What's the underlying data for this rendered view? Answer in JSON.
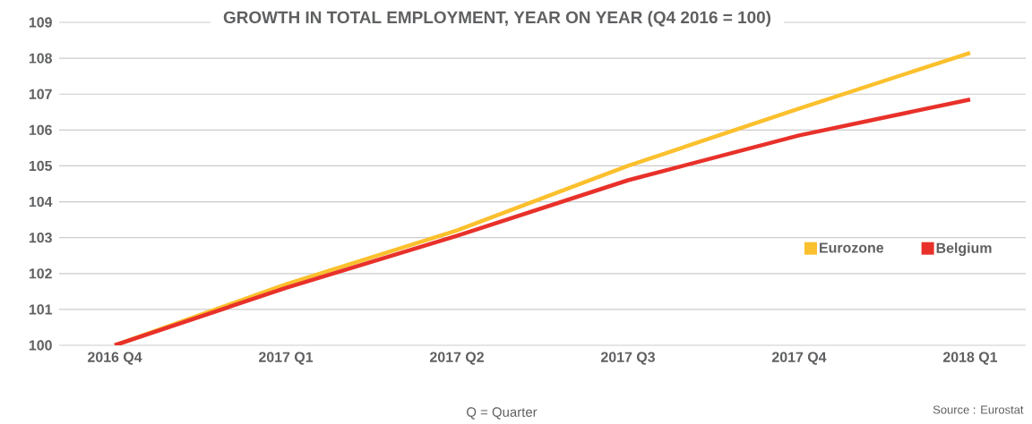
{
  "chart_data": {
    "type": "line",
    "title": "GROWTH IN TOTAL EMPLOYMENT, YEAR ON YEAR (Q4 2016 = 100)",
    "categories": [
      "2016 Q4",
      "2017 Q1",
      "2017 Q2",
      "2017 Q3",
      "2017 Q4",
      "2018 Q1"
    ],
    "series": [
      {
        "name": "Eurozone",
        "color": "#fbc02d",
        "values": [
          100,
          101.7,
          103.2,
          105.0,
          106.6,
          108.15
        ]
      },
      {
        "name": "Belgium",
        "color": "#e8312a",
        "values": [
          100,
          101.6,
          103.05,
          104.6,
          105.85,
          106.85
        ]
      }
    ],
    "ylim": [
      100,
      109
    ],
    "yticks": [
      100,
      101,
      102,
      103,
      104,
      105,
      106,
      107,
      108,
      109
    ],
    "grid": "y",
    "legend": "right",
    "marker": "none",
    "line_style": "solid",
    "annotations": [
      "Q = Quarter",
      "Source : Eurostat"
    ]
  }
}
